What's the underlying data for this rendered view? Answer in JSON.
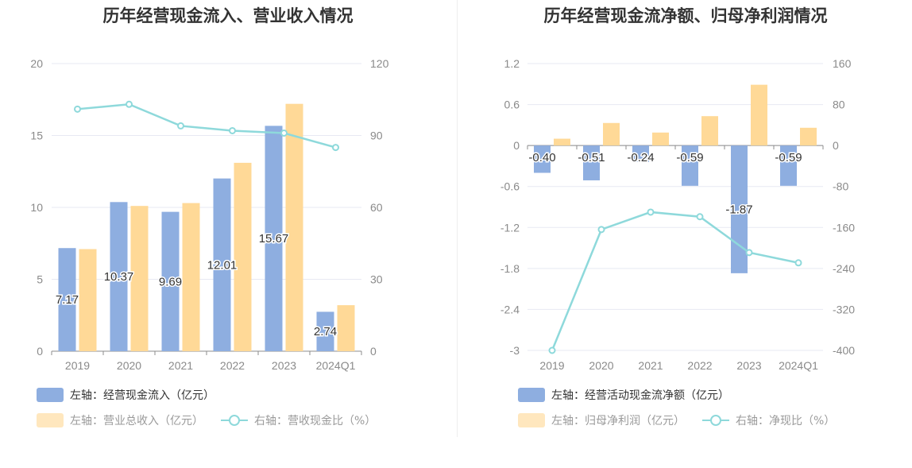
{
  "colors": {
    "bar_primary": "#8eaee0",
    "bar_secondary": "#ffd997",
    "line": "#8ed9db",
    "grid": "#e7e9f3",
    "axis_text": "#8a8a8a"
  },
  "legend_icons": {
    "left_bar": "bar-swatch-icon",
    "left_bar2": "bar-swatch-icon",
    "line": "line-marker-icon"
  },
  "chart_data": [
    {
      "id": "left",
      "type": "bar",
      "title": "历年经营现金流入、营业收入情况",
      "categories": [
        "2019",
        "2020",
        "2021",
        "2022",
        "2023",
        "2024Q1"
      ],
      "left_axis": {
        "min": 0,
        "max": 20,
        "ticks": [
          "0",
          "5",
          "10",
          "15",
          "20"
        ]
      },
      "right_axis": {
        "min": 0,
        "max": 120,
        "ticks": [
          "0",
          "30",
          "60",
          "90",
          "120"
        ]
      },
      "series": [
        {
          "name": "左轴：经营现金流入（亿元）",
          "axis": "left",
          "kind": "bar",
          "values": [
            7.17,
            10.37,
            9.69,
            12.01,
            15.67,
            2.74
          ],
          "labels": [
            "7.17",
            "10.37",
            "9.69",
            "12.01",
            "15.67",
            "2.74"
          ]
        },
        {
          "name": "左轴：营业总收入（亿元）",
          "axis": "left",
          "kind": "bar",
          "values": [
            7.1,
            10.1,
            10.3,
            13.1,
            17.2,
            3.2
          ]
        },
        {
          "name": "右轴：营收现金比（%）",
          "axis": "right",
          "kind": "line",
          "values": [
            101,
            103,
            94,
            92,
            91,
            85
          ]
        }
      ]
    },
    {
      "id": "right",
      "type": "bar",
      "title": "历年经营现金流净额、归母净利润情况",
      "categories": [
        "2019",
        "2020",
        "2021",
        "2022",
        "2023",
        "2024Q1"
      ],
      "left_axis": {
        "min": -3,
        "max": 1.2,
        "ticks": [
          "-3",
          "-2.4",
          "-1.8",
          "-1.2",
          "-0.6",
          "0",
          "0.6",
          "1.2"
        ]
      },
      "right_axis": {
        "min": -400,
        "max": 160,
        "ticks": [
          "-400",
          "-320",
          "-240",
          "-160",
          "-80",
          "0",
          "80",
          "160"
        ]
      },
      "series": [
        {
          "name": "左轴：经营活动现金流净额（亿元）",
          "axis": "left",
          "kind": "bar",
          "values": [
            -0.4,
            -0.51,
            -0.24,
            -0.59,
            -1.87,
            -0.59
          ],
          "labels": [
            "-0.40",
            "-0.51",
            "-0.24",
            "-0.59",
            "-1.87",
            "-0.59"
          ]
        },
        {
          "name": "左轴：归母净利润（亿元）",
          "axis": "left",
          "kind": "bar",
          "values": [
            0.1,
            0.33,
            0.19,
            0.43,
            0.89,
            0.26
          ]
        },
        {
          "name": "右轴：净现比（%）",
          "axis": "right",
          "kind": "line",
          "values": [
            -400,
            -164,
            -130,
            -139,
            -209,
            -229
          ]
        }
      ]
    }
  ]
}
